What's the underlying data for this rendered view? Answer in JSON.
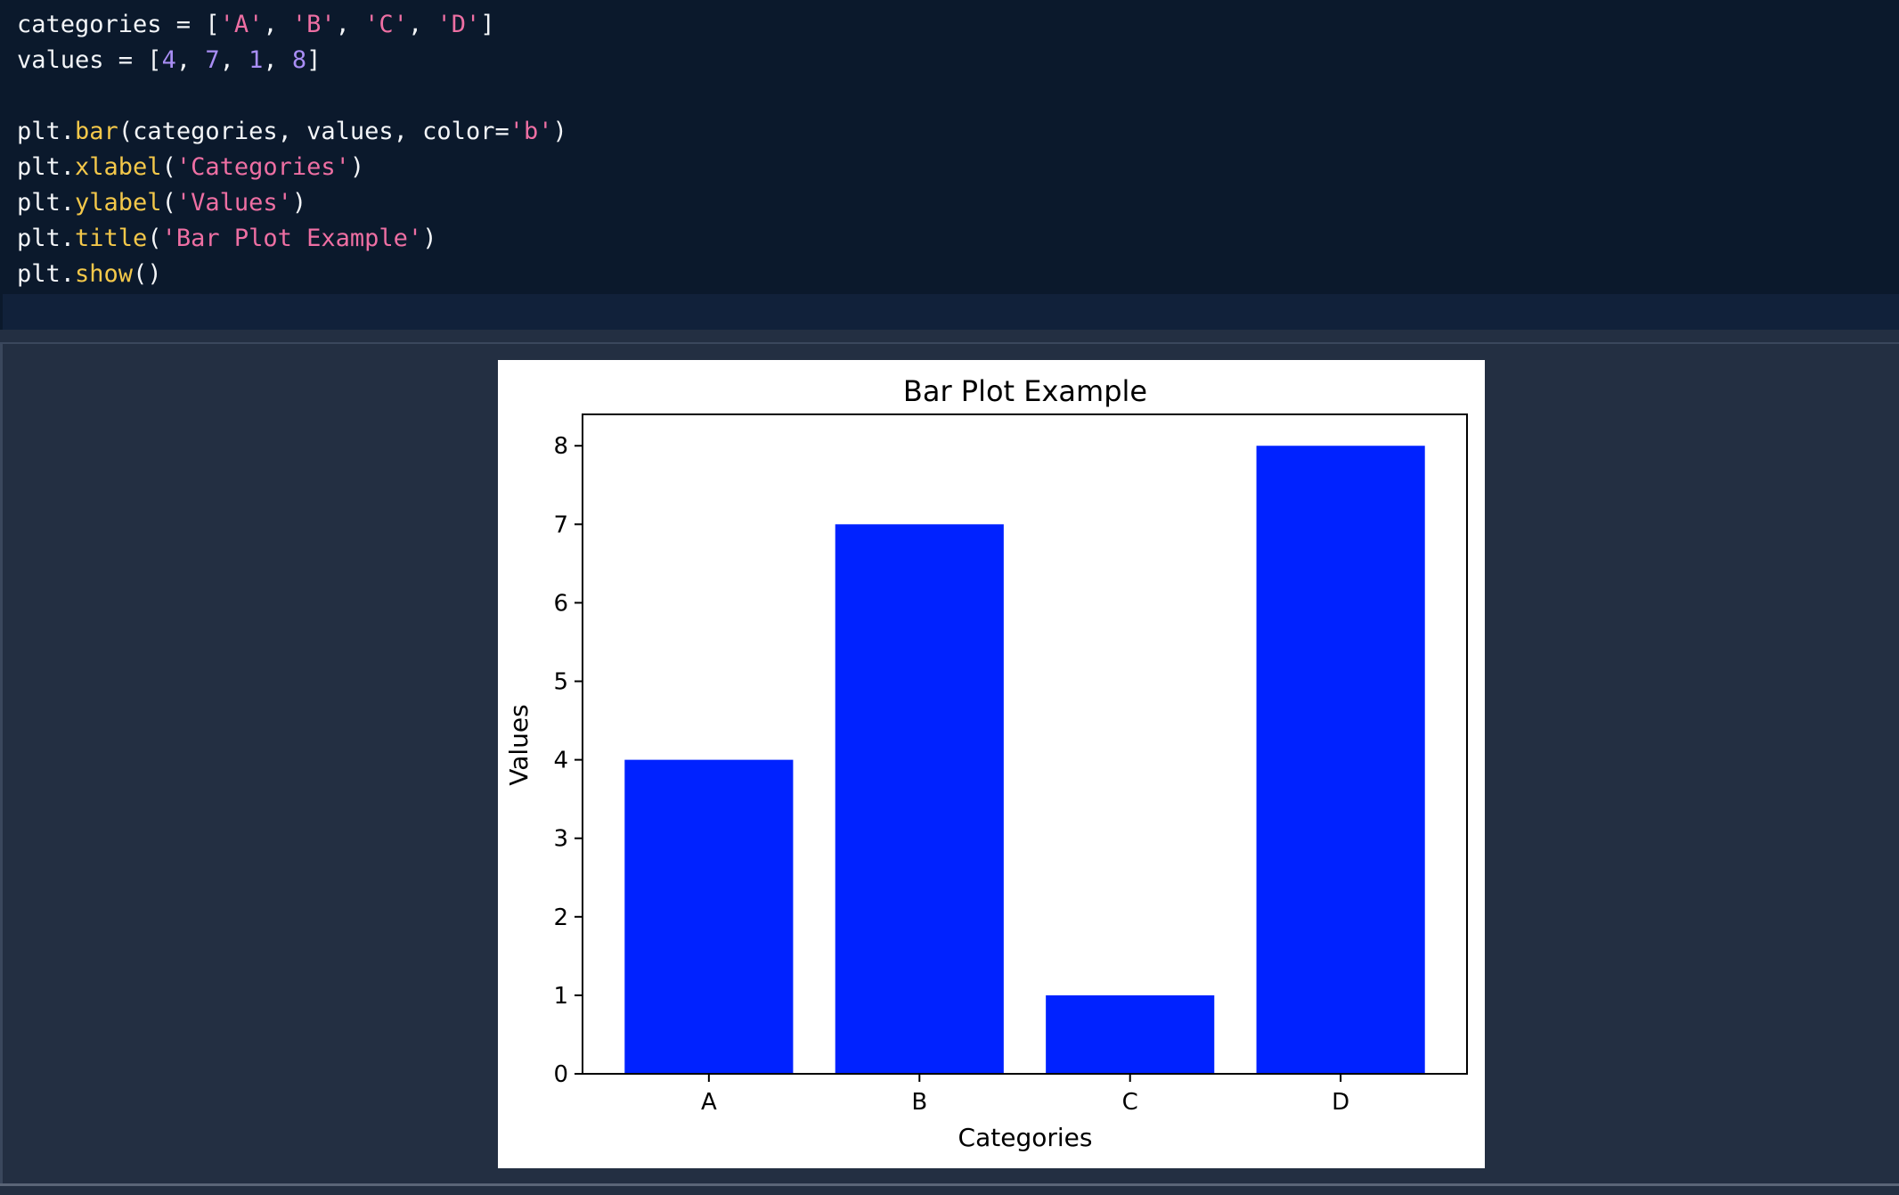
{
  "code": {
    "lines": [
      [
        {
          "t": "categories = [",
          "c": "plain"
        },
        {
          "t": "'A'",
          "c": "str"
        },
        {
          "t": ", ",
          "c": "plain"
        },
        {
          "t": "'B'",
          "c": "str"
        },
        {
          "t": ", ",
          "c": "plain"
        },
        {
          "t": "'C'",
          "c": "str"
        },
        {
          "t": ", ",
          "c": "plain"
        },
        {
          "t": "'D'",
          "c": "str"
        },
        {
          "t": "]",
          "c": "plain"
        }
      ],
      [
        {
          "t": "values = [",
          "c": "plain"
        },
        {
          "t": "4",
          "c": "num"
        },
        {
          "t": ", ",
          "c": "plain"
        },
        {
          "t": "7",
          "c": "num"
        },
        {
          "t": ", ",
          "c": "plain"
        },
        {
          "t": "1",
          "c": "num"
        },
        {
          "t": ", ",
          "c": "plain"
        },
        {
          "t": "8",
          "c": "num"
        },
        {
          "t": "]",
          "c": "plain"
        }
      ],
      [],
      [
        {
          "t": "plt.",
          "c": "plain"
        },
        {
          "t": "bar",
          "c": "fn"
        },
        {
          "t": "(categories, values, color=",
          "c": "plain"
        },
        {
          "t": "'b'",
          "c": "str"
        },
        {
          "t": ")",
          "c": "plain"
        }
      ],
      [
        {
          "t": "plt.",
          "c": "plain"
        },
        {
          "t": "xlabel",
          "c": "fn"
        },
        {
          "t": "(",
          "c": "plain"
        },
        {
          "t": "'Categories'",
          "c": "str"
        },
        {
          "t": ")",
          "c": "plain"
        }
      ],
      [
        {
          "t": "plt.",
          "c": "plain"
        },
        {
          "t": "ylabel",
          "c": "fn"
        },
        {
          "t": "(",
          "c": "plain"
        },
        {
          "t": "'Values'",
          "c": "str"
        },
        {
          "t": ")",
          "c": "plain"
        }
      ],
      [
        {
          "t": "plt.",
          "c": "plain"
        },
        {
          "t": "title",
          "c": "fn"
        },
        {
          "t": "(",
          "c": "plain"
        },
        {
          "t": "'Bar Plot Example'",
          "c": "str"
        },
        {
          "t": ")",
          "c": "plain"
        }
      ],
      [
        {
          "t": "plt.",
          "c": "plain"
        },
        {
          "t": "show",
          "c": "fn"
        },
        {
          "t": "()",
          "c": "plain"
        }
      ]
    ]
  },
  "colors": {
    "code_background": "#0b192c",
    "output_background": "#232f42",
    "bar_color": "#0022ff",
    "string_token": "#ee6fa3",
    "number_token": "#a98ef5",
    "function_token": "#f4c84a"
  },
  "chart_data": {
    "type": "bar",
    "title": "Bar Plot Example",
    "xlabel": "Categories",
    "ylabel": "Values",
    "categories": [
      "A",
      "B",
      "C",
      "D"
    ],
    "values": [
      4,
      7,
      1,
      8
    ],
    "ylim": [
      0,
      8.4
    ],
    "yticks": [
      0,
      1,
      2,
      3,
      4,
      5,
      6,
      7,
      8
    ],
    "grid": false,
    "legend": "none",
    "bar_color": "#0022ff"
  }
}
